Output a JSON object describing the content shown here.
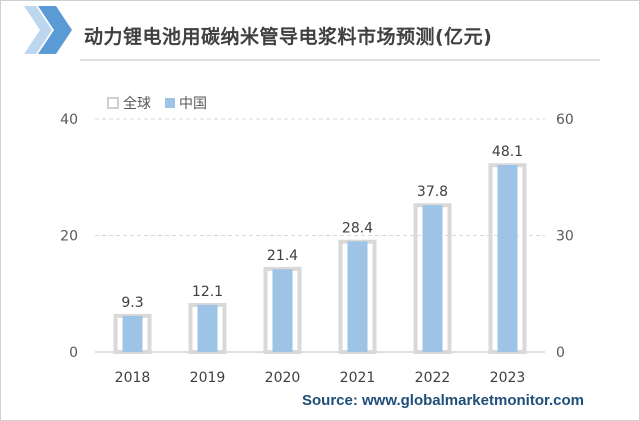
{
  "header": {
    "title": "动力锂电池用碳纳米管导电浆料市场预测(亿元)"
  },
  "footer": {
    "source": "Source: www.globalmarketmonitor.com"
  },
  "colors": {
    "global_outline": "#d9d9d9",
    "china_fill": "#9dc3e6",
    "accent_blue": "#5b9bd5"
  },
  "chart_data": {
    "type": "bar",
    "categories": [
      "2018",
      "2019",
      "2020",
      "2021",
      "2022",
      "2023"
    ],
    "series": [
      {
        "name": "全球",
        "axis": "right",
        "values": [
          9.3,
          12.1,
          21.4,
          28.4,
          37.8,
          48.1
        ],
        "labels": [
          "9.3",
          "12.1",
          "21.4",
          "28.4",
          "37.8",
          "48.1"
        ]
      },
      {
        "name": "中国",
        "axis": "left",
        "values": [
          6.2,
          8.1,
          14.2,
          19.0,
          25.2,
          32.1
        ]
      }
    ],
    "left_axis": {
      "ylim": [
        0,
        40
      ],
      "ticks": [
        "0",
        "20",
        "40"
      ]
    },
    "right_axis": {
      "ylim": [
        0,
        60
      ],
      "ticks": [
        "0",
        "30",
        "60"
      ]
    },
    "grid": true,
    "legend": "top-left"
  }
}
